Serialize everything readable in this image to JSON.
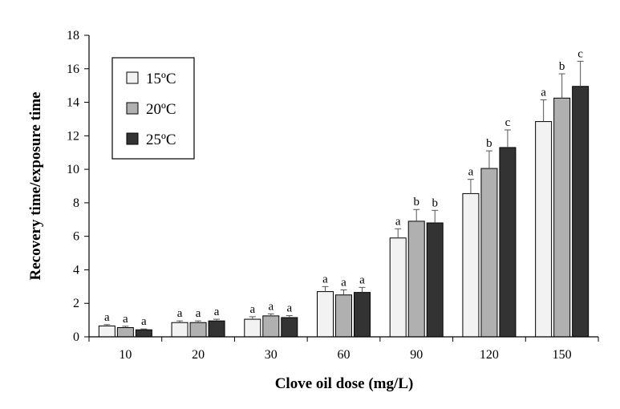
{
  "chart_data": {
    "type": "bar",
    "title": "",
    "xlabel": "Clove oil dose (mg/L)",
    "ylabel": "Recovery time/exposure time",
    "ylim": [
      0,
      18
    ],
    "yticks": [
      "0",
      "2",
      "4",
      "6",
      "8",
      "10",
      "12",
      "14",
      "16",
      "18"
    ],
    "categories": [
      "10",
      "20",
      "30",
      "60",
      "90",
      "120",
      "150"
    ],
    "grid": false,
    "legend_position": "top-left",
    "series": [
      {
        "name": "15ºC",
        "color": "#f2f2f2",
        "values": [
          0.65,
          0.85,
          1.05,
          2.7,
          5.9,
          8.55,
          12.85
        ],
        "errors": [
          0.08,
          0.1,
          0.15,
          0.3,
          0.55,
          0.85,
          1.3
        ],
        "labels": [
          "a",
          "a",
          "a",
          "a",
          "a",
          "a",
          "a"
        ]
      },
      {
        "name": "20ºC",
        "color": "#b0b0b0",
        "values": [
          0.55,
          0.85,
          1.25,
          2.5,
          6.9,
          10.05,
          14.25
        ],
        "errors": [
          0.08,
          0.1,
          0.12,
          0.3,
          0.7,
          1.05,
          1.45
        ],
        "labels": [
          "a",
          "a",
          "a",
          "a",
          "b",
          "b",
          "b"
        ]
      },
      {
        "name": "25ºC",
        "color": "#333333",
        "values": [
          0.42,
          0.95,
          1.15,
          2.65,
          6.8,
          11.3,
          14.95
        ],
        "errors": [
          0.05,
          0.1,
          0.12,
          0.3,
          0.75,
          1.05,
          1.5
        ],
        "labels": [
          "a",
          "a",
          "a",
          "a",
          "b",
          "c",
          "c"
        ]
      }
    ]
  }
}
